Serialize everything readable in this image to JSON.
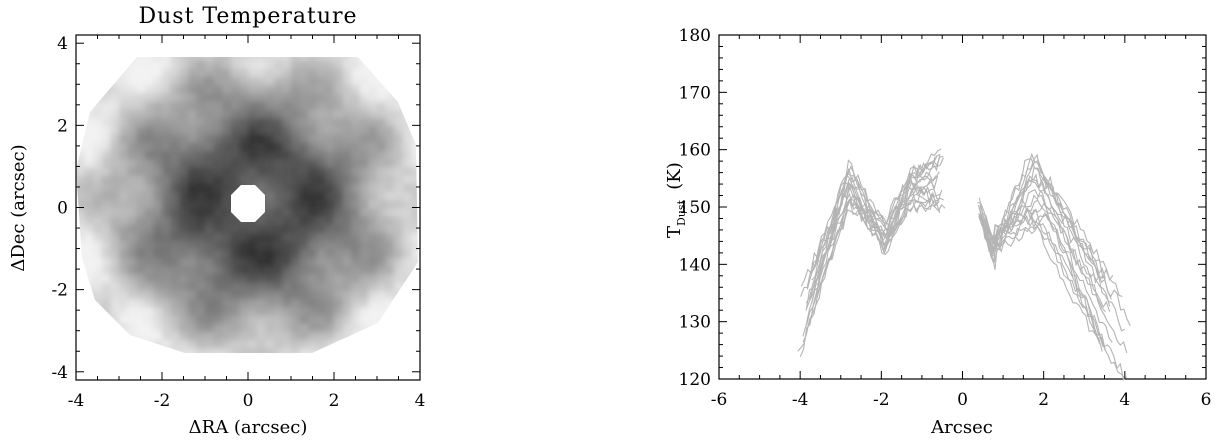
{
  "chart_data": [
    {
      "type": "heatmap",
      "title": "Dust Temperature",
      "xlabel": "ΔRA (arcsec)",
      "ylabel": "ΔDec (arcsec)",
      "xlim": [
        -4,
        4
      ],
      "ylim": [
        -4.2,
        4.2
      ],
      "x_ticks": [
        "-4",
        "-2",
        "0",
        "2",
        "4"
      ],
      "y_ticks": [
        "-4",
        "-2",
        "0",
        "2",
        "4"
      ],
      "colormap": "grayscale (darker = lower)",
      "description_values": {
        "central_mask_radius_arcsec": 0.45
      }
    },
    {
      "type": "line",
      "title": "",
      "xlabel": "Arcsec",
      "ylabel_main": "T",
      "ylabel_sub": "Dust",
      "ylabel_unit": "(K)",
      "xlim": [
        -6,
        6
      ],
      "ylim": [
        120,
        180
      ],
      "x_ticks": [
        "-6",
        "-4",
        "-2",
        "0",
        "2",
        "4",
        "6"
      ],
      "y_ticks": [
        "120",
        "130",
        "140",
        "150",
        "160",
        "170",
        "180"
      ],
      "line_color": "#b4b4b4",
      "series_count": 18
    }
  ],
  "colors": {
    "axis": "#000000",
    "profile_line": "#b4b4b4",
    "background": "#ffffff"
  }
}
